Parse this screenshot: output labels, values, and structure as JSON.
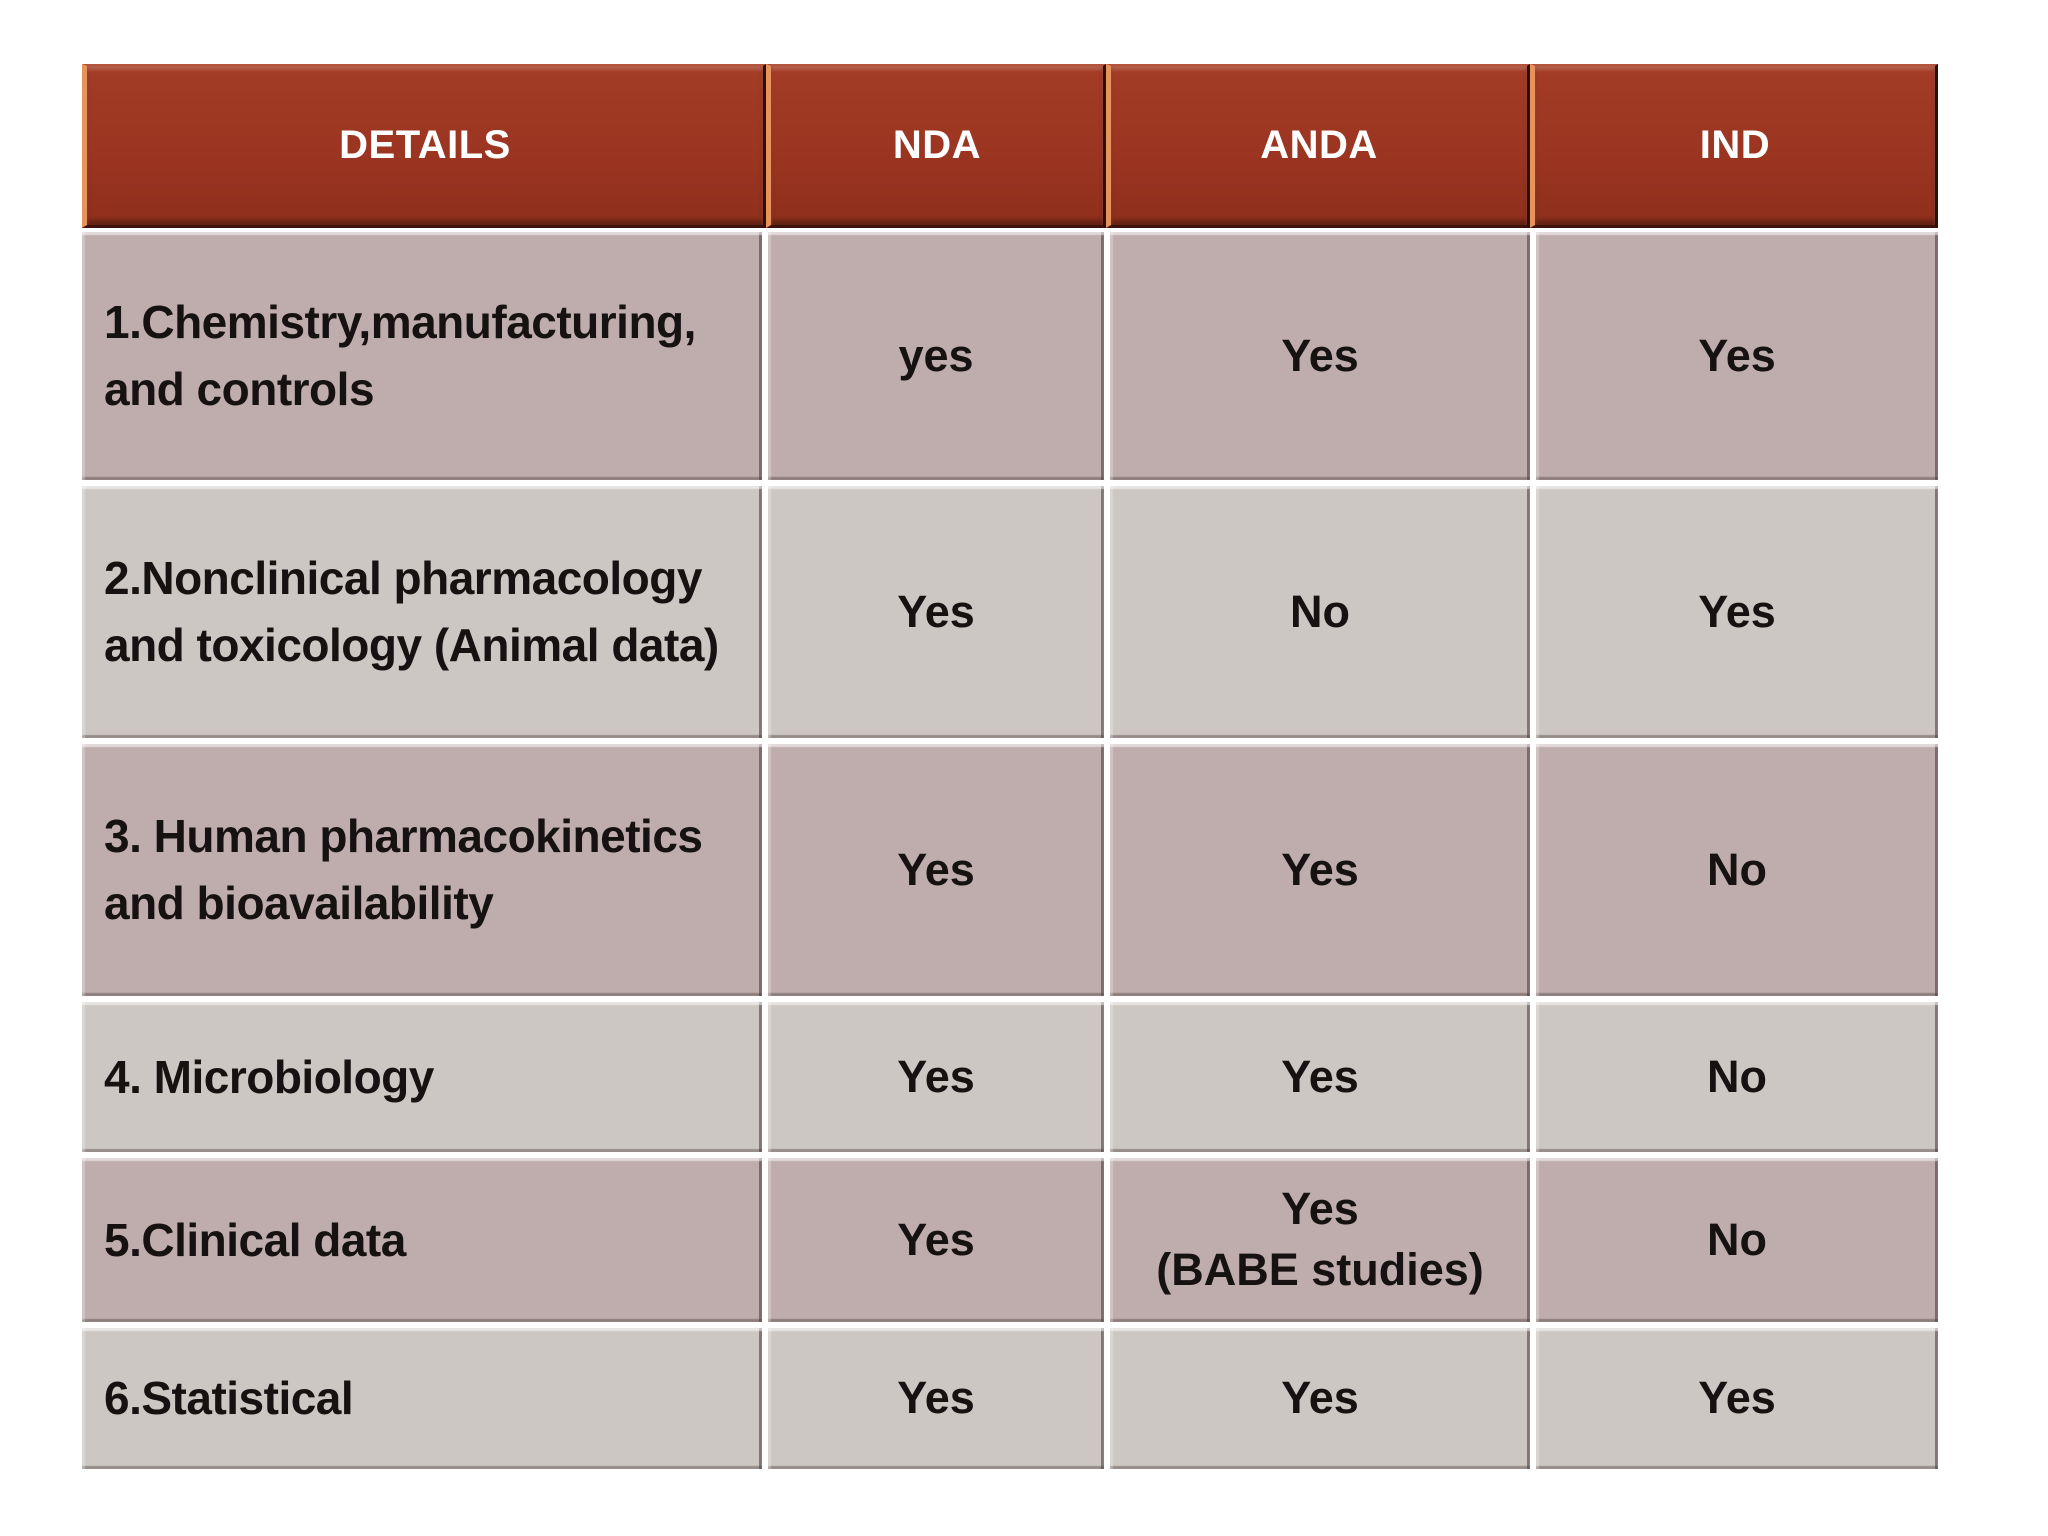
{
  "colors": {
    "header_bg": "#9b3521",
    "header_text": "#ffffff",
    "row_odd_bg": "#bfadad",
    "row_even_bg": "#ccc7c3",
    "accent_orange": "#e8935c",
    "cell_text": "#171212"
  },
  "table": {
    "columns": [
      "DETAILS",
      "NDA",
      "ANDA",
      "IND"
    ],
    "rows": [
      {
        "detail": "1.Chemistry,manufacturing, and controls",
        "values": [
          "yes",
          "Yes",
          "Yes"
        ]
      },
      {
        "detail": "2.Nonclinical pharmacology and toxicology (Animal data)",
        "values": [
          "Yes",
          "No",
          "Yes"
        ]
      },
      {
        "detail": "3. Human pharmacokinetics and bioavailability",
        "values": [
          "Yes",
          "Yes",
          "No"
        ]
      },
      {
        "detail": "4. Microbiology",
        "values": [
          "Yes",
          "Yes",
          "No"
        ]
      },
      {
        "detail": "5.Clinical data",
        "values": [
          "Yes",
          "Yes\n(BABE studies)",
          "No"
        ]
      },
      {
        "detail": "6.Statistical",
        "values": [
          "Yes",
          "Yes",
          "Yes"
        ]
      }
    ]
  }
}
